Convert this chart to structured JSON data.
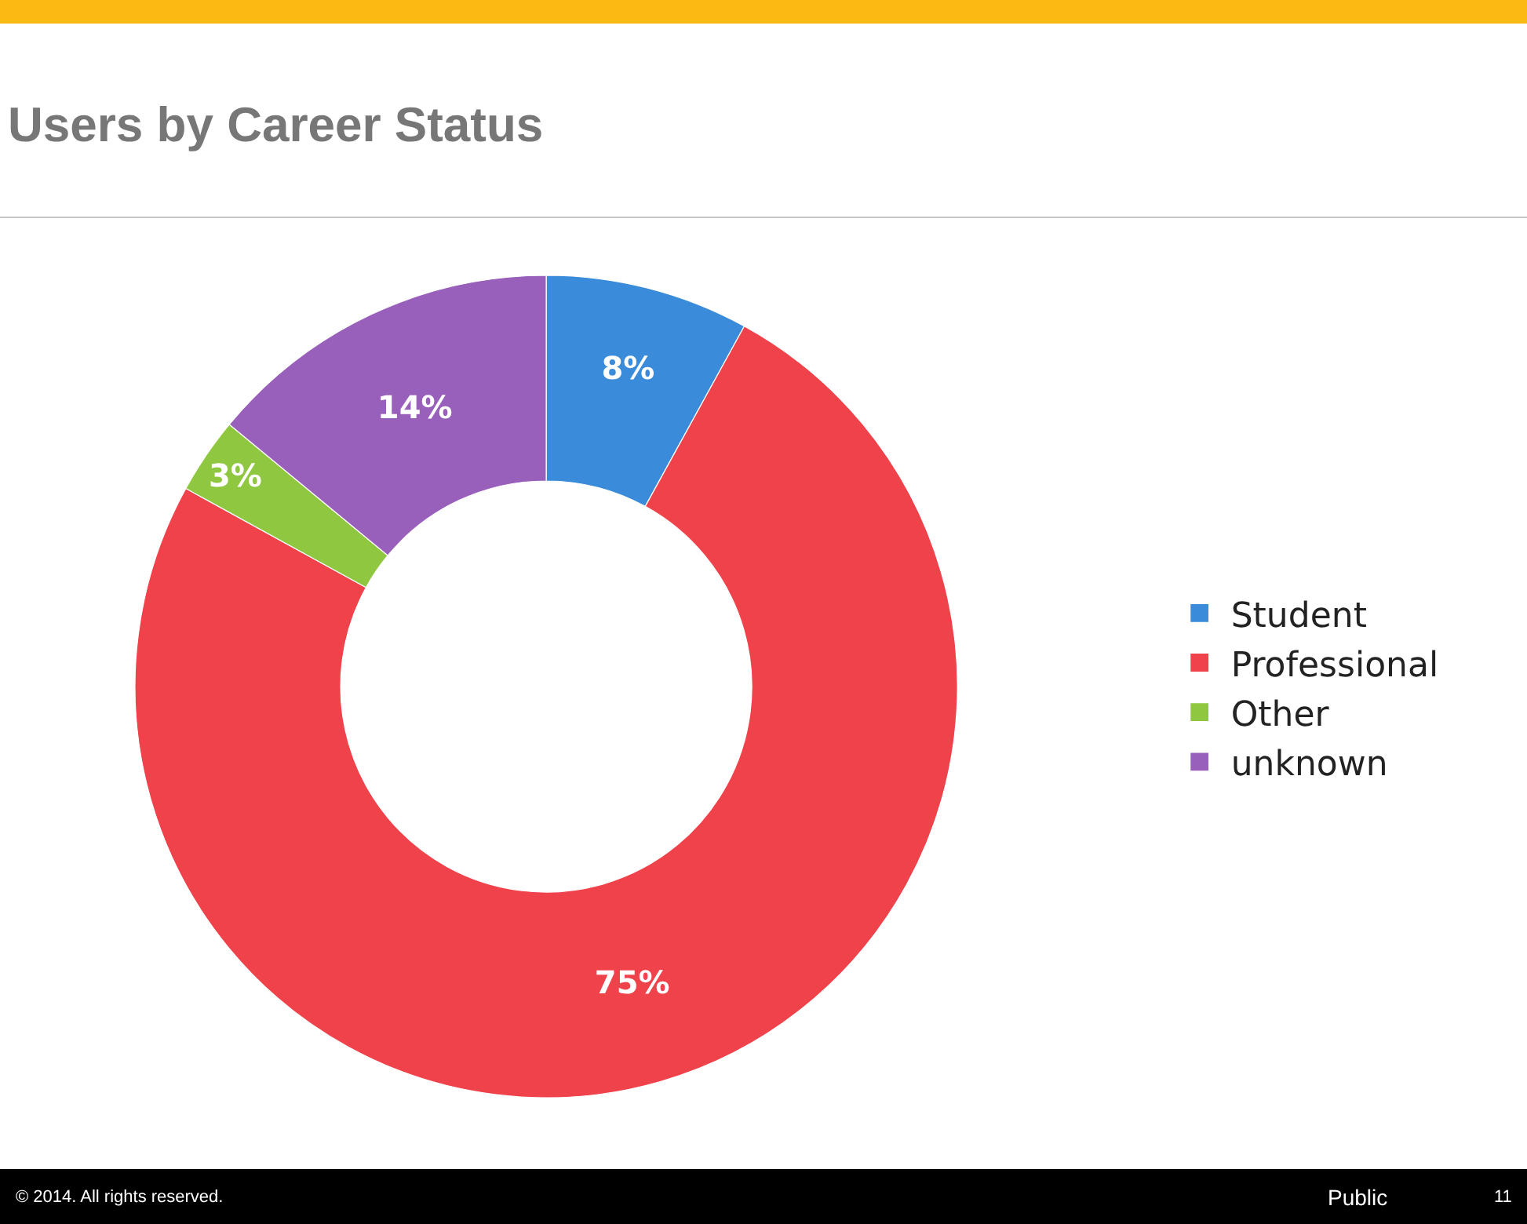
{
  "chart_data": {
    "type": "donut",
    "title": "Users by Career Status",
    "categories": [
      "Student",
      "Professional",
      "Other",
      "unknown"
    ],
    "values": [
      8,
      75,
      3,
      14
    ],
    "colors": [
      "#3a8bd9",
      "#f0424a",
      "#8fc741",
      "#9960bb"
    ],
    "value_labels": [
      "8%",
      "75%",
      "3%",
      "14%"
    ],
    "legend": "right",
    "annotations": [
      "© 2014. All rights reserved.",
      "Public",
      "11"
    ]
  }
}
